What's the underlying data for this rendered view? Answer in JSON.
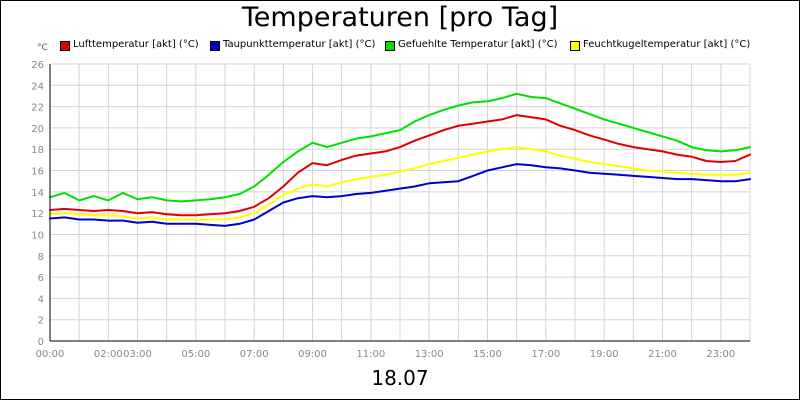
{
  "chart_data": {
    "type": "line",
    "title": "Temperaturen [pro Tag]",
    "ylabel": "°C",
    "xlabel": "18.07",
    "ylim": [
      0,
      26
    ],
    "xlim": [
      0,
      24
    ],
    "y_ticks": [
      0,
      2,
      4,
      6,
      8,
      10,
      12,
      14,
      16,
      18,
      20,
      22,
      24,
      26
    ],
    "x_ticks": [
      {
        "t": 0,
        "label": "00:00"
      },
      {
        "t": 2,
        "label": "02:00"
      },
      {
        "t": 3,
        "label": "03:00"
      },
      {
        "t": 5,
        "label": "05:00"
      },
      {
        "t": 7,
        "label": "07:00"
      },
      {
        "t": 9,
        "label": "09:00"
      },
      {
        "t": 11,
        "label": "11:00"
      },
      {
        "t": 13,
        "label": "13:00"
      },
      {
        "t": 15,
        "label": "15:00"
      },
      {
        "t": 17,
        "label": "17:00"
      },
      {
        "t": 19,
        "label": "19:00"
      },
      {
        "t": 21,
        "label": "21:00"
      },
      {
        "t": 23,
        "label": "23:00"
      }
    ],
    "grid": true,
    "legend_position": "top",
    "series": [
      {
        "name": "Lufttemperatur [akt] (°C)",
        "color": "#e00000",
        "x": [
          0,
          0.5,
          1,
          1.5,
          2,
          2.5,
          3,
          3.5,
          4,
          4.5,
          5,
          5.5,
          6,
          6.5,
          7,
          7.5,
          8,
          8.5,
          9,
          9.5,
          10,
          10.5,
          11,
          11.5,
          12,
          12.5,
          13,
          13.5,
          14,
          14.5,
          15,
          15.5,
          16,
          16.5,
          17,
          17.5,
          18,
          18.5,
          19,
          19.5,
          20,
          20.5,
          21,
          21.5,
          22,
          22.5,
          23,
          23.5,
          24
        ],
        "y": [
          12.3,
          12.4,
          12.3,
          12.2,
          12.3,
          12.2,
          12.0,
          12.1,
          11.9,
          11.8,
          11.8,
          11.9,
          12.0,
          12.2,
          12.6,
          13.4,
          14.5,
          15.8,
          16.7,
          16.5,
          17.0,
          17.4,
          17.6,
          17.8,
          18.2,
          18.8,
          19.3,
          19.8,
          20.2,
          20.4,
          20.6,
          20.8,
          21.2,
          21.0,
          20.8,
          20.2,
          19.8,
          19.3,
          18.9,
          18.5,
          18.2,
          18.0,
          17.8,
          17.5,
          17.3,
          16.9,
          16.8,
          16.9,
          17.5
        ]
      },
      {
        "name": "Taupunkttemperatur [akt] (°C)",
        "color": "#0000d0",
        "x": [
          0,
          0.5,
          1,
          1.5,
          2,
          2.5,
          3,
          3.5,
          4,
          4.5,
          5,
          5.5,
          6,
          6.5,
          7,
          7.5,
          8,
          8.5,
          9,
          9.5,
          10,
          10.5,
          11,
          11.5,
          12,
          12.5,
          13,
          13.5,
          14,
          14.5,
          15,
          15.5,
          16,
          16.5,
          17,
          17.5,
          18,
          18.5,
          19,
          19.5,
          20,
          20.5,
          21,
          21.5,
          22,
          22.5,
          23,
          23.5,
          24
        ],
        "y": [
          11.5,
          11.6,
          11.4,
          11.4,
          11.3,
          11.3,
          11.1,
          11.2,
          11.0,
          11.0,
          11.0,
          10.9,
          10.8,
          11.0,
          11.4,
          12.2,
          13.0,
          13.4,
          13.6,
          13.5,
          13.6,
          13.8,
          13.9,
          14.1,
          14.3,
          14.5,
          14.8,
          14.9,
          15.0,
          15.5,
          16.0,
          16.3,
          16.6,
          16.5,
          16.3,
          16.2,
          16.0,
          15.8,
          15.7,
          15.6,
          15.5,
          15.4,
          15.3,
          15.2,
          15.2,
          15.1,
          15.0,
          15.0,
          15.2
        ]
      },
      {
        "name": "Gefuehlte Temperatur [akt] (°C)",
        "color": "#00e000",
        "x": [
          0,
          0.5,
          1,
          1.5,
          2,
          2.5,
          3,
          3.5,
          4,
          4.5,
          5,
          5.5,
          6,
          6.5,
          7,
          7.5,
          8,
          8.5,
          9,
          9.5,
          10,
          10.5,
          11,
          11.5,
          12,
          12.5,
          13,
          13.5,
          14,
          14.5,
          15,
          15.5,
          16,
          16.5,
          17,
          17.5,
          18,
          18.5,
          19,
          19.5,
          20,
          20.5,
          21,
          21.5,
          22,
          22.5,
          23,
          23.5,
          24
        ],
        "y": [
          13.5,
          13.9,
          13.2,
          13.6,
          13.2,
          13.9,
          13.3,
          13.5,
          13.2,
          13.1,
          13.2,
          13.3,
          13.5,
          13.8,
          14.5,
          15.6,
          16.8,
          17.8,
          18.6,
          18.2,
          18.6,
          19.0,
          19.2,
          19.5,
          19.8,
          20.6,
          21.2,
          21.7,
          22.1,
          22.4,
          22.5,
          22.8,
          23.2,
          22.9,
          22.8,
          22.3,
          21.8,
          21.3,
          20.8,
          20.4,
          20.0,
          19.6,
          19.2,
          18.8,
          18.2,
          17.9,
          17.8,
          17.9,
          18.2
        ]
      },
      {
        "name": "Feuchtkugeltemperatur [akt] (°C)",
        "color": "#ffff00",
        "x": [
          0,
          0.5,
          1,
          1.5,
          2,
          2.5,
          3,
          3.5,
          4,
          4.5,
          5,
          5.5,
          6,
          6.5,
          7,
          7.5,
          8,
          8.5,
          9,
          9.5,
          10,
          10.5,
          11,
          11.5,
          12,
          12.5,
          13,
          13.5,
          14,
          14.5,
          15,
          15.5,
          16,
          16.5,
          17,
          17.5,
          18,
          18.5,
          19,
          19.5,
          20,
          20.5,
          21,
          21.5,
          22,
          22.5,
          23,
          23.5,
          24
        ],
        "y": [
          11.9,
          12.0,
          11.9,
          11.8,
          11.8,
          11.7,
          11.5,
          11.6,
          11.4,
          11.4,
          11.4,
          11.4,
          11.4,
          11.6,
          12.0,
          12.8,
          13.7,
          14.3,
          14.7,
          14.5,
          14.9,
          15.2,
          15.4,
          15.6,
          15.9,
          16.2,
          16.6,
          16.9,
          17.2,
          17.5,
          17.8,
          18.0,
          18.2,
          18.0,
          17.8,
          17.4,
          17.1,
          16.8,
          16.6,
          16.4,
          16.2,
          16.0,
          15.9,
          15.8,
          15.7,
          15.6,
          15.6,
          15.6,
          15.8
        ]
      }
    ]
  }
}
